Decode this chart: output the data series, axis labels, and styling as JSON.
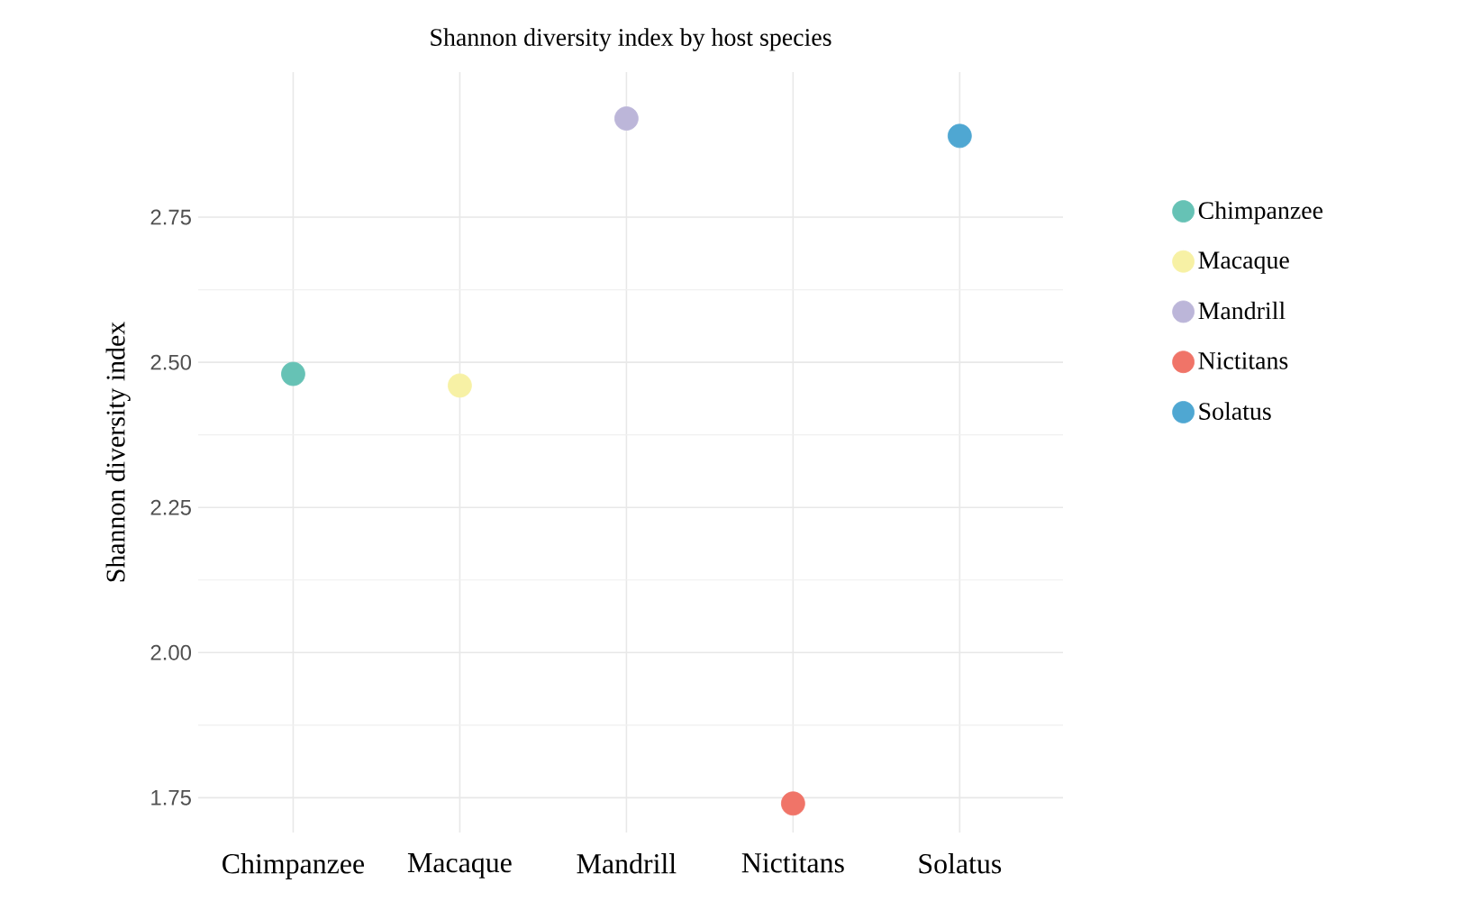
{
  "chart_data": {
    "type": "scatter",
    "title": "Shannon diversity index by host species",
    "ylabel": "Shannon diversity index",
    "categories": [
      "Chimpanzee",
      "Macaque",
      "Mandrill",
      "Nictitans",
      "Solatus"
    ],
    "series": [
      {
        "name": "Chimpanzee",
        "color": "#66c2b5",
        "values": [
          2.48,
          null,
          null,
          null,
          null
        ]
      },
      {
        "name": "Macaque",
        "color": "#f7f1a5",
        "values": [
          null,
          2.46,
          null,
          null,
          null
        ]
      },
      {
        "name": "Mandrill",
        "color": "#bcb6d9",
        "values": [
          null,
          null,
          2.92,
          null,
          null
        ]
      },
      {
        "name": "Nictitans",
        "color": "#f07468",
        "values": [
          null,
          null,
          null,
          1.74,
          null
        ]
      },
      {
        "name": "Solatus",
        "color": "#4fa7d2",
        "values": [
          null,
          null,
          null,
          null,
          2.89
        ]
      }
    ],
    "ylim": [
      1.69,
      3.0
    ],
    "yticks": [
      {
        "value": 1.75,
        "label": "1.75"
      },
      {
        "value": 2.0,
        "label": "2.00"
      },
      {
        "value": 2.25,
        "label": "2.25"
      },
      {
        "value": 2.5,
        "label": "2.50"
      },
      {
        "value": 2.75,
        "label": "2.75"
      }
    ],
    "grid": true,
    "legend": "right",
    "marker": "circle"
  }
}
